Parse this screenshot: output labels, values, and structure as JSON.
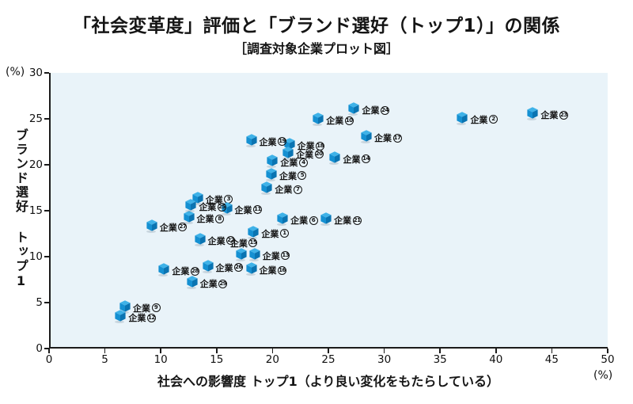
{
  "chart_data": {
    "type": "scatter",
    "title": "「社会変革度」評価と「ブランド選好（トップ1）」の関係",
    "subtitle": "［調査対象企業プロット図］",
    "xlabel": "社会への影響度 トップ1（より良い変化をもたらしている）",
    "ylabel": "ブランド選好 トップ1",
    "x_unit": "(%)",
    "y_unit": "(%)",
    "xlim": [
      0,
      50
    ],
    "ylim": [
      0,
      30
    ],
    "xticks": [
      0,
      5,
      10,
      15,
      20,
      25,
      30,
      35,
      40,
      45,
      50
    ],
    "yticks": [
      0,
      5,
      10,
      15,
      20,
      25,
      30
    ],
    "grid": false,
    "legend": "none",
    "marker": "isometric-cube-icon",
    "marker_colors": {
      "top": "#3fb2e8",
      "left": "#1590d2",
      "right": "#0a74b2"
    },
    "plot_bg": "#e9f3f9",
    "label_prefix": "企業",
    "points": [
      {
        "no": 1,
        "x": 18.3,
        "y": 12.7
      },
      {
        "no": 2,
        "x": 37.0,
        "y": 25.1
      },
      {
        "no": 3,
        "x": 13.3,
        "y": 16.4
      },
      {
        "no": 4,
        "x": 20.0,
        "y": 20.4
      },
      {
        "no": 5,
        "x": 19.9,
        "y": 19.0
      },
      {
        "no": 6,
        "x": 20.9,
        "y": 14.1
      },
      {
        "no": 7,
        "x": 19.5,
        "y": 17.5
      },
      {
        "no": 8,
        "x": 12.5,
        "y": 14.3
      },
      {
        "no": 9,
        "x": 6.8,
        "y": 4.6
      },
      {
        "no": 10,
        "x": 24.1,
        "y": 25.0
      },
      {
        "no": 11,
        "x": 15.9,
        "y": 15.3
      },
      {
        "no": 12,
        "x": 6.4,
        "y": 3.5
      },
      {
        "no": 13,
        "x": 18.4,
        "y": 10.3
      },
      {
        "no": 14,
        "x": 25.6,
        "y": 20.8
      },
      {
        "no": 15,
        "x": 17.2,
        "y": 10.3,
        "label_pos": "above"
      },
      {
        "no": 16,
        "x": 18.1,
        "y": 8.7
      },
      {
        "no": 17,
        "x": 28.4,
        "y": 23.1
      },
      {
        "no": 18,
        "x": 21.5,
        "y": 22.2
      },
      {
        "no": 19,
        "x": 18.1,
        "y": 22.7
      },
      {
        "no": 20,
        "x": 21.4,
        "y": 21.3
      },
      {
        "no": 21,
        "x": 24.8,
        "y": 14.1
      },
      {
        "no": 22,
        "x": 13.5,
        "y": 11.9
      },
      {
        "no": 23,
        "x": 43.3,
        "y": 25.6
      },
      {
        "no": 24,
        "x": 27.3,
        "y": 26.1
      },
      {
        "no": 25,
        "x": 12.7,
        "y": 15.6
      },
      {
        "no": 26,
        "x": 14.2,
        "y": 9.0
      },
      {
        "no": 27,
        "x": 9.2,
        "y": 13.4
      },
      {
        "no": 28,
        "x": 10.3,
        "y": 8.6
      },
      {
        "no": 29,
        "x": 12.8,
        "y": 7.2
      }
    ]
  }
}
